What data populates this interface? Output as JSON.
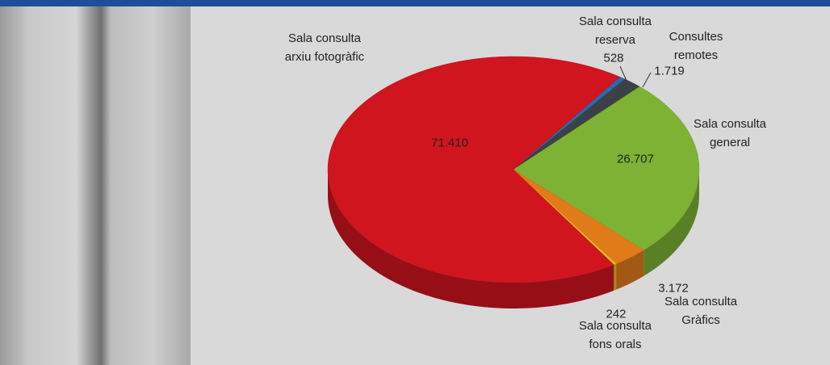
{
  "chart_data": {
    "type": "pie",
    "categories": [
      "Sala consulta reserva",
      "Consultes remotes",
      "Sala consulta general",
      "Sala consulta Gràfics",
      "Sala consulta fons orals",
      "Sala consulta arxiu fotogràfic"
    ],
    "values": [
      528,
      1719,
      26707,
      3172,
      242,
      71410
    ],
    "value_labels": [
      "528",
      "1.719",
      "26.707",
      "3.172",
      "242",
      "71.410"
    ],
    "colors": [
      "#1f6fb5",
      "#3b4145",
      "#7db234",
      "#e07b1a",
      "#e3c21c",
      "#d0151e"
    ]
  }
}
